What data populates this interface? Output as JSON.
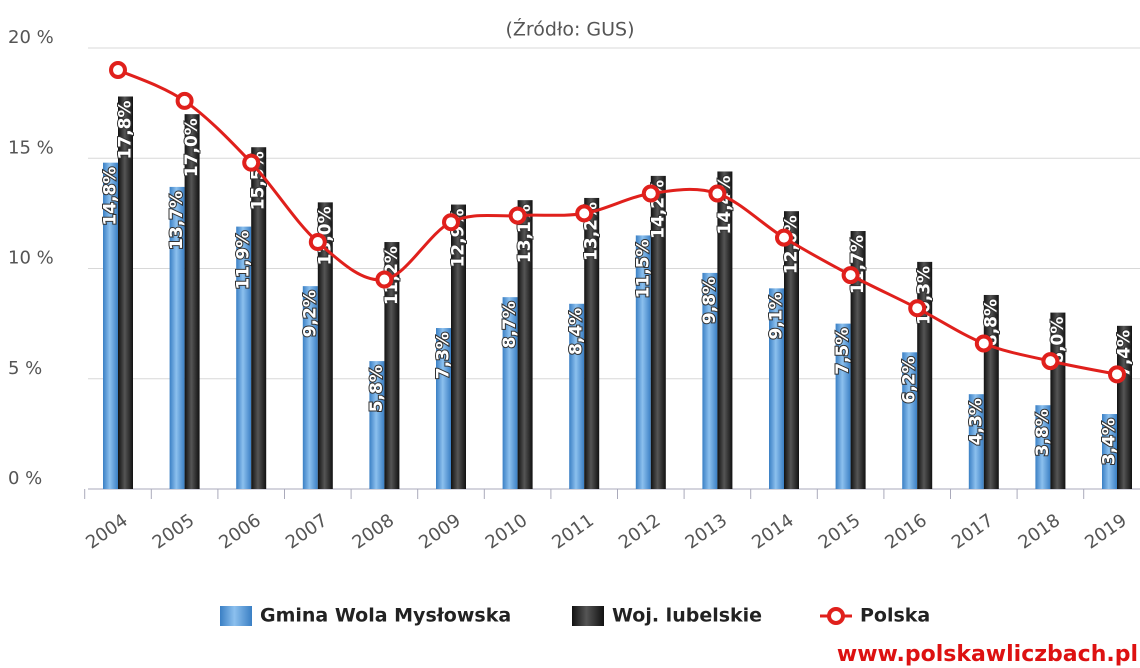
{
  "chart_data": {
    "type": "bar-line",
    "subtitle": "(Źródło: GUS)",
    "source": "www.polskawliczbach.pl",
    "categories": [
      "2004",
      "2005",
      "2006",
      "2007",
      "2008",
      "2009",
      "2010",
      "2011",
      "2012",
      "2013",
      "2014",
      "2015",
      "2016",
      "2017",
      "2018",
      "2019"
    ],
    "series": [
      {
        "name": "Gmina Wola Mysłowska",
        "type": "bar",
        "color": "#3a7fc4",
        "values": [
          14.8,
          13.7,
          11.9,
          9.2,
          5.8,
          7.3,
          8.7,
          8.4,
          11.5,
          9.8,
          9.1,
          7.5,
          6.2,
          4.3,
          3.8,
          3.4
        ],
        "value_labels": [
          "14,8%",
          "13,7%",
          "11,9%",
          "9,2%",
          "5,8%",
          "7,3%",
          "8,7%",
          "8,4%",
          "11,5%",
          "9,8%",
          "9,1%",
          "7,5%",
          "6,2%",
          "4,3%",
          "3,8%",
          "3,4%"
        ]
      },
      {
        "name": "Woj. lubelskie",
        "type": "bar",
        "color": "#111111",
        "values": [
          17.8,
          17.0,
          15.5,
          13.0,
          11.2,
          12.9,
          13.1,
          13.2,
          14.2,
          14.4,
          12.6,
          11.7,
          10.3,
          8.8,
          8.0,
          7.4
        ],
        "value_labels": [
          "17,8%",
          "17,0%",
          "15,5%",
          "13,0%",
          "11,2%",
          "12,9%",
          "13,1%",
          "13,2%",
          "14,2%",
          "14,4%",
          "12,6%",
          "11,7%",
          "10,3%",
          "8,8%",
          "8,0%",
          "7,4%"
        ]
      },
      {
        "name": "Polska",
        "type": "line",
        "color": "#e0201c",
        "values": [
          19.0,
          17.6,
          14.8,
          11.2,
          9.5,
          12.1,
          12.4,
          12.5,
          13.4,
          13.4,
          11.4,
          9.7,
          8.2,
          6.6,
          5.8,
          5.2
        ]
      }
    ],
    "ylim": [
      0,
      20
    ],
    "yticks": [
      {
        "value": 0,
        "label": "0 %"
      },
      {
        "value": 5,
        "label": "5 %"
      },
      {
        "value": 10,
        "label": "10 %"
      },
      {
        "value": 15,
        "label": "15 %"
      },
      {
        "value": 20,
        "label": "20 %"
      }
    ],
    "grid": true
  }
}
